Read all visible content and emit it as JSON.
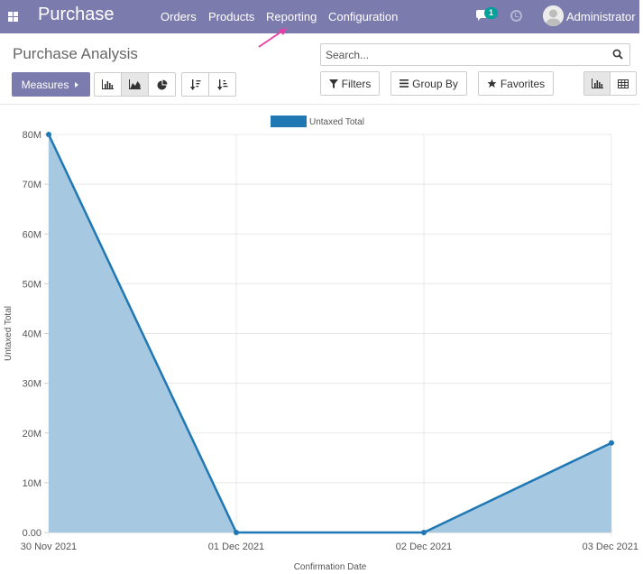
{
  "navbar": {
    "brand": "Purchase",
    "menu": [
      {
        "label": "Orders"
      },
      {
        "label": "Products"
      },
      {
        "label": "Reporting"
      },
      {
        "label": "Configuration"
      }
    ],
    "chat_badge": "1",
    "user": "Administrator",
    "color": "#7c7bad"
  },
  "control_panel": {
    "title": "Purchase Analysis",
    "search_placeholder": "Search...",
    "measures_label": "Measures",
    "filters_label": "Filters",
    "groupby_label": "Group By",
    "favorites_label": "Favorites"
  },
  "chart_data": {
    "type": "area",
    "series": [
      {
        "name": "Untaxed Total",
        "values": [
          80000000,
          0,
          0,
          18000000
        ],
        "color": "#1f77b4"
      }
    ],
    "categories": [
      "30 Nov 2021",
      "01 Dec 2021",
      "02 Dec 2021",
      "03 Dec 2021"
    ],
    "xlabel": "Confirmation Date",
    "ylabel": "Untaxed Total",
    "ylim": [
      0,
      80000000
    ],
    "yticks": [
      "0.00",
      "10M",
      "20M",
      "30M",
      "40M",
      "50M",
      "60M",
      "70M",
      "80M"
    ],
    "grid": true,
    "legend": "top-center"
  }
}
